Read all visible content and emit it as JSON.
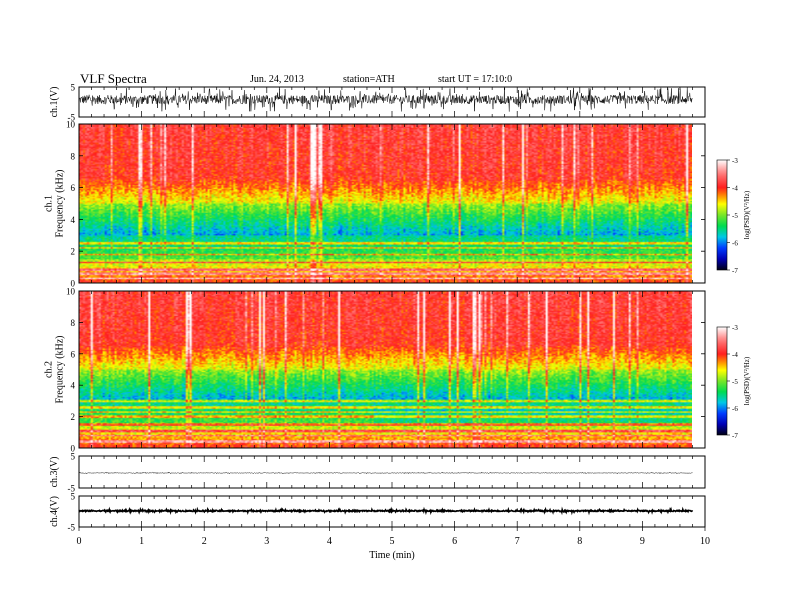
{
  "header": {
    "title": "VLF  Spectra",
    "date": "Jun. 24, 2013",
    "station": "station=ATH",
    "start_ut": "start  UT  =    17:10:0"
  },
  "chart_data": [
    {
      "type": "line",
      "ylabel": "ch.1(V)",
      "ylim": [
        -5,
        5
      ],
      "yticks": [
        "5",
        "-5"
      ],
      "description_values": {
        "baseline": 0.8,
        "noise_amplitude": 2.5
      }
    },
    {
      "type": "heatmap",
      "ylabel_channel": "ch.1",
      "ylabel": "Frequency  (kHz)",
      "ylim": [
        0,
        10
      ],
      "yticks": [
        "0",
        "2",
        "4",
        "6",
        "8",
        "10"
      ],
      "colorbar": {
        "label": "log(PSD)(V²/Hz)",
        "range": [
          -7,
          -3
        ],
        "ticks": [
          "-3",
          "-4",
          "-5",
          "-6",
          "-7"
        ]
      }
    },
    {
      "type": "heatmap",
      "ylabel_channel": "ch.2",
      "ylabel": "Frequency  (kHz)",
      "ylim": [
        0,
        10
      ],
      "yticks": [
        "0",
        "2",
        "4",
        "6",
        "8",
        "10"
      ],
      "colorbar": {
        "label": "log(PSD)(V²/Hz)",
        "range": [
          -7,
          -3
        ],
        "ticks": [
          "-3",
          "-4",
          "-5",
          "-6",
          "-7"
        ]
      }
    },
    {
      "type": "line",
      "ylabel": "ch.3(V)",
      "ylim": [
        -5,
        5
      ],
      "yticks": [
        "5",
        "-5"
      ],
      "description_values": {
        "baseline": -0.3,
        "noise_amplitude": 0.15
      }
    },
    {
      "type": "line",
      "ylabel": "ch.4(V)",
      "ylim": [
        -5,
        5
      ],
      "yticks": [
        "5",
        "-5"
      ],
      "description_values": {
        "baseline": 0.2,
        "noise_amplitude": 0.3
      }
    }
  ],
  "x_axis": {
    "label": "Time  (min)",
    "xlim": [
      0,
      10
    ],
    "data_end": 9.8,
    "ticks": [
      "0",
      "1",
      "2",
      "3",
      "4",
      "5",
      "6",
      "7",
      "8",
      "9",
      "10"
    ]
  },
  "colors": {
    "high": "#ff2020",
    "mid": "#ffff00",
    "green": "#00e040",
    "cyan": "#00d0c0",
    "blue": "#0030ff"
  }
}
